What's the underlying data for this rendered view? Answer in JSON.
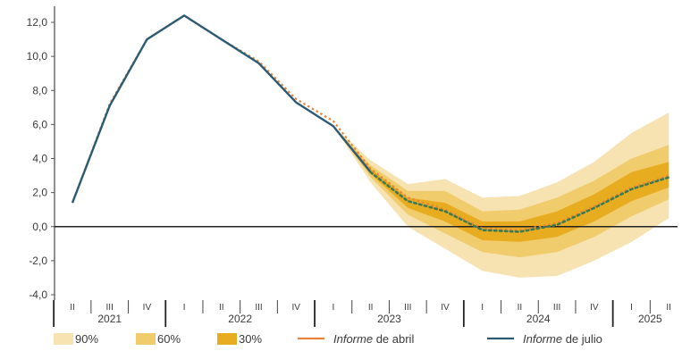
{
  "chart_data": {
    "type": "line",
    "title": "",
    "xlabel": "",
    "ylabel": "",
    "ylim": [
      -4.0,
      12.0
    ],
    "y_ticks": [
      "-4,0",
      "-2,0",
      "0,0",
      "2,0",
      "4,0",
      "6,0",
      "8,0",
      "10,0",
      "12,0"
    ],
    "quarters": [
      "2021-II",
      "2021-III",
      "2021-IV",
      "2022-I",
      "2022-II",
      "2022-III",
      "2022-IV",
      "2023-I",
      "2023-II",
      "2023-III",
      "2023-IV",
      "2024-I",
      "2024-II",
      "2024-III",
      "2024-IV",
      "2025-I",
      "2025-II"
    ],
    "quarter_labels": [
      "II",
      "III",
      "IV",
      "I",
      "II",
      "III",
      "IV",
      "I",
      "II",
      "III",
      "IV",
      "I",
      "II",
      "III",
      "IV",
      "I",
      "II"
    ],
    "years": [
      {
        "label": "2021",
        "from": "2021-II",
        "to": "2021-IV"
      },
      {
        "label": "2022",
        "from": "2022-I",
        "to": "2022-IV"
      },
      {
        "label": "2023",
        "from": "2023-I",
        "to": "2023-IV"
      },
      {
        "label": "2024",
        "from": "2024-I",
        "to": "2024-IV"
      },
      {
        "label": "2025",
        "from": "2025-I",
        "to": "2025-II"
      }
    ],
    "series": [
      {
        "name": "Informe de abril",
        "color": "#e8833a",
        "values": [
          1.4,
          7.2,
          11.0,
          12.4,
          11.0,
          9.7,
          7.5,
          6.2,
          3.4,
          1.7,
          1.0,
          -0.1,
          -0.2,
          0.2,
          1.2,
          2.3,
          3.0
        ]
      },
      {
        "name": "Informe de julio",
        "color": "#2b5b74",
        "values": [
          1.4,
          7.1,
          11.0,
          12.4,
          11.0,
          9.6,
          7.3,
          5.9,
          3.2,
          1.5,
          0.9,
          -0.2,
          -0.3,
          0.1,
          1.1,
          2.2,
          2.9
        ],
        "projection_start": "2023-II",
        "projection_style": "dotted green"
      }
    ],
    "fan_chart": {
      "start": "2023-I",
      "bands": [
        {
          "name": "90%",
          "color": "#f7e3b2",
          "lower": [
            5.9,
            2.6,
            0.0,
            -1.3,
            -2.6,
            -3.0,
            -2.9,
            -2.0,
            -0.9,
            0.5
          ],
          "upper": [
            5.9,
            3.9,
            2.5,
            2.8,
            1.7,
            1.8,
            2.6,
            3.8,
            5.5,
            6.7
          ]
        },
        {
          "name": "60%",
          "color": "#f1cc6c",
          "lower": [
            5.9,
            2.9,
            0.7,
            -0.4,
            -1.5,
            -1.8,
            -1.5,
            -0.6,
            0.6,
            1.6
          ],
          "upper": [
            5.9,
            3.6,
            2.1,
            2.1,
            0.9,
            1.0,
            1.7,
            2.7,
            4.0,
            4.8
          ]
        },
        {
          "name": "30%",
          "color": "#e8ac20",
          "lower": [
            5.9,
            3.1,
            1.1,
            0.3,
            -0.8,
            -0.9,
            -0.6,
            0.3,
            1.5,
            2.3
          ],
          "upper": [
            5.9,
            3.4,
            1.7,
            1.4,
            0.3,
            0.3,
            0.9,
            1.9,
            3.2,
            3.8
          ]
        }
      ]
    },
    "legend": [
      {
        "label": "90%",
        "kind": "swatch",
        "color": "#f7e3b2"
      },
      {
        "label": "60%",
        "kind": "swatch",
        "color": "#f1cc6c"
      },
      {
        "label": "30%",
        "kind": "swatch",
        "color": "#e8ac20"
      },
      {
        "label_italic": "Informe",
        "label_rest": " de abril",
        "kind": "line",
        "color": "#e8833a"
      },
      {
        "label_italic": "Informe",
        "label_rest": " de julio",
        "kind": "line",
        "color": "#2b5b74"
      }
    ],
    "legend_position": "bottom",
    "grid": false
  }
}
